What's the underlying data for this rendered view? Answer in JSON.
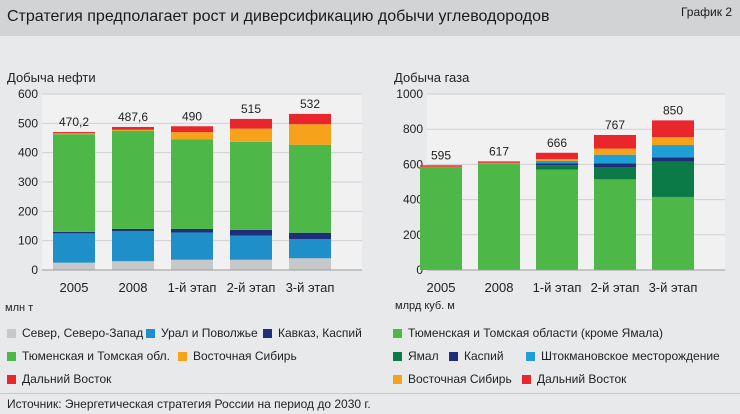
{
  "header": {
    "title": "Стратегия предполагает рост и диверсификацию добычи углеводородов",
    "tag": "График 2"
  },
  "colors": {
    "north_northwest": "#c7c8ca",
    "ural_volga": "#1e8fc8",
    "caucasus_caspian": "#1f2d7a",
    "tyumen_tomsk": "#4db848",
    "east_siberia": "#f7a21b",
    "far_east": "#e8262b",
    "yamal": "#0c7a46",
    "shtokman": "#1ea0d6"
  },
  "chart_data": [
    {
      "type": "bar",
      "stacked": true,
      "title": "Добыча нефти",
      "unit": "млн т",
      "categories": [
        "2005",
        "2008",
        "1-й этап",
        "2-й этап",
        "3-й этап"
      ],
      "totals": [
        "470,2",
        "487,6",
        "490",
        "515",
        "532"
      ],
      "ylim": [
        0,
        600
      ],
      "yticks": [
        0,
        100,
        200,
        300,
        400,
        500,
        600
      ],
      "series": [
        {
          "name": "Север, Северо-Запад",
          "color": "#c7c8ca",
          "values": [
            25,
            30,
            35,
            35,
            40
          ]
        },
        {
          "name": "Урал и Поволжье",
          "color": "#1e8fc8",
          "values": [
            100,
            103,
            93,
            82,
            65
          ]
        },
        {
          "name": "Кавказ, Каспий",
          "color": "#1f2d7a",
          "values": [
            5,
            7,
            12,
            20,
            22
          ]
        },
        {
          "name": "Тюменская и Томская обл.",
          "color": "#4db848",
          "values": [
            333,
            335,
            305,
            300,
            300
          ]
        },
        {
          "name": "Восточная Сибирь",
          "color": "#f7a21b",
          "values": [
            3,
            3,
            25,
            45,
            70
          ]
        },
        {
          "name": "Дальний Восток",
          "color": "#e8262b",
          "values": [
            4.2,
            9.6,
            20,
            33,
            35
          ]
        }
      ]
    },
    {
      "type": "bar",
      "stacked": true,
      "title": "Добыча газа",
      "unit": "млрд куб. м",
      "categories": [
        "2005",
        "2008",
        "1-й этап",
        "2-й этап",
        "3-й этап"
      ],
      "totals": [
        "595",
        "617",
        "666",
        "767",
        "850"
      ],
      "ylim": [
        0,
        1000
      ],
      "yticks": [
        0,
        200,
        400,
        600,
        800,
        1000
      ],
      "series": [
        {
          "name": "Тюменская и Томская области (кроме Ямала)",
          "color": "#4db848",
          "values": [
            585,
            605,
            570,
            515,
            415
          ]
        },
        {
          "name": "Ямал",
          "color": "#0c7a46",
          "values": [
            0,
            0,
            25,
            70,
            200
          ]
        },
        {
          "name": "Каспий",
          "color": "#1f2d7a",
          "values": [
            0,
            0,
            10,
            20,
            25
          ]
        },
        {
          "name": "Штокмановское месторождение",
          "color": "#1ea0d6",
          "values": [
            0,
            0,
            15,
            50,
            70
          ]
        },
        {
          "name": "Восточная Сибирь",
          "color": "#f7a21b",
          "values": [
            2,
            4,
            10,
            35,
            45
          ]
        },
        {
          "name": "Дальний Восток",
          "color": "#e8262b",
          "values": [
            8,
            8,
            36,
            77,
            95
          ]
        }
      ]
    }
  ],
  "legend": {
    "oil": [
      {
        "label": "Север, Северо-Запад",
        "color": "#c7c8ca"
      },
      {
        "label": "Урал и Поволжье",
        "color": "#1e8fc8"
      },
      {
        "label": "Кавказ, Каспий",
        "color": "#1f2d7a"
      },
      {
        "label": "Тюменская и Томская обл.",
        "color": "#4db848"
      },
      {
        "label": "Восточная Сибирь",
        "color": "#f7a21b"
      },
      {
        "label": "Дальний Восток",
        "color": "#e8262b"
      }
    ],
    "gas": [
      {
        "label": "Тюменская и Томская области (кроме Ямала)",
        "color": "#4db848"
      },
      {
        "label": "Ямал",
        "color": "#0c7a46"
      },
      {
        "label": "Каспий",
        "color": "#1f2d7a"
      },
      {
        "label": "Штокмановское месторождение",
        "color": "#1ea0d6"
      },
      {
        "label": "Восточная Сибирь",
        "color": "#f7a21b"
      },
      {
        "label": "Дальний Восток",
        "color": "#e8262b"
      }
    ]
  },
  "source": "Источник: Энергетическая стратегия России на период до 2030 г."
}
